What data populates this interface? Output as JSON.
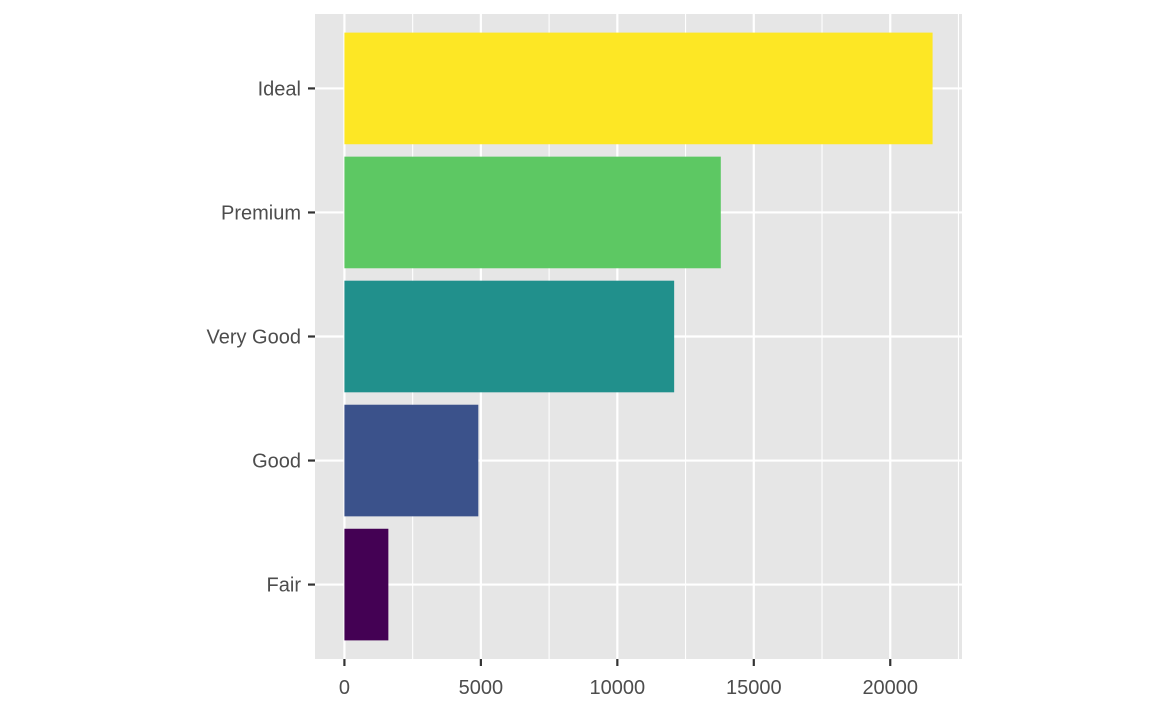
{
  "chart_data": {
    "type": "bar",
    "orientation": "horizontal",
    "categories": [
      "Fair",
      "Good",
      "Very Good",
      "Premium",
      "Ideal"
    ],
    "values": [
      1610,
      4906,
      12082,
      13791,
      21551
    ],
    "colors": [
      "#440154",
      "#3B528B",
      "#21908C",
      "#5DC863",
      "#FDE725"
    ],
    "xlim": [
      -1078,
      22629
    ],
    "xticks": [
      0,
      5000,
      10000,
      15000,
      20000
    ],
    "xtick_labels": [
      "0",
      "5000",
      "10000",
      "15000",
      "20000"
    ],
    "xlabel": "",
    "ylabel": "",
    "title": "",
    "grid": true,
    "panel_background": "#E6E6E6",
    "grid_color": "#FFFFFF",
    "legend": "none"
  }
}
